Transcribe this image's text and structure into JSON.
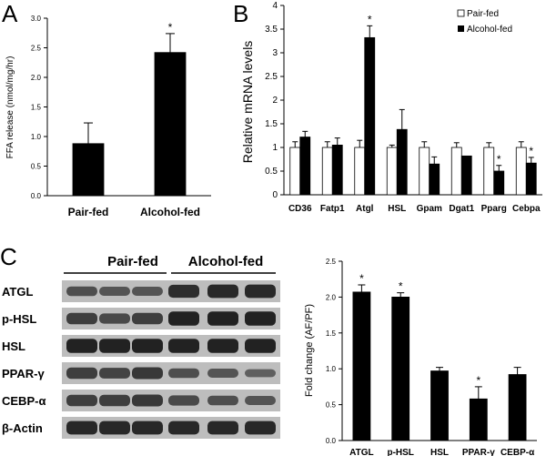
{
  "panels": {
    "A": "A",
    "B": "B",
    "C": "C"
  },
  "colors": {
    "bar_dark": "#000000",
    "bar_light": "#ffffff",
    "blot_band": "#1c1c1c",
    "blot_bg": "#bdbdbd"
  },
  "blot": {
    "group_labels": [
      "Pair-fed",
      "Alcohol-fed"
    ],
    "rows": [
      {
        "label": "ATGL",
        "strength": [
          0.55,
          0.5,
          0.5,
          0.85,
          0.9,
          0.9
        ]
      },
      {
        "label": "p-HSL",
        "strength": [
          0.7,
          0.6,
          0.7,
          0.95,
          0.95,
          0.95
        ]
      },
      {
        "label": "HSL",
        "strength": [
          0.95,
          0.95,
          0.95,
          0.95,
          0.95,
          0.95
        ]
      },
      {
        "label": "PPAR-γ",
        "strength": [
          0.7,
          0.65,
          0.75,
          0.55,
          0.5,
          0.4
        ]
      },
      {
        "label": "CEBP-α",
        "strength": [
          0.7,
          0.7,
          0.75,
          0.6,
          0.55,
          0.5
        ]
      },
      {
        "label": "β-Actin",
        "strength": [
          0.9,
          0.9,
          0.9,
          0.9,
          0.9,
          0.9
        ]
      }
    ]
  },
  "chart_data": [
    {
      "type": "bar",
      "panel": "A",
      "categories": [
        "Pair-fed",
        "Alcohol-fed"
      ],
      "values": [
        0.88,
        2.42
      ],
      "errors": [
        0.35,
        0.32
      ],
      "significance": [
        "",
        "*"
      ],
      "ylabel": "FFA release (nmol/mg/hr)",
      "ylim": [
        0,
        3.0
      ],
      "yticks": [
        "0.0",
        "0.5",
        "1.0",
        "1.5",
        "2.0",
        "2.5",
        "3.0"
      ],
      "grid": false
    },
    {
      "type": "bar",
      "panel": "B",
      "categories": [
        "CD36",
        "Fatp1",
        "Atgl",
        "HSL",
        "Gpam",
        "Dgat1",
        "Pparg",
        "Cebpa"
      ],
      "series": [
        {
          "name": "Pair-fed",
          "values": [
            1.0,
            1.0,
            1.0,
            1.0,
            1.0,
            1.0,
            1.0,
            1.0
          ],
          "errors": [
            0.12,
            0.12,
            0.15,
            0.05,
            0.12,
            0.1,
            0.1,
            0.12
          ],
          "significance": [
            "",
            "",
            "",
            "",
            "",
            "",
            "",
            ""
          ]
        },
        {
          "name": "Alcohol-fed",
          "values": [
            1.22,
            1.05,
            3.32,
            1.38,
            0.65,
            0.82,
            0.5,
            0.67
          ],
          "errors": [
            0.12,
            0.15,
            0.25,
            0.42,
            0.15,
            0.0,
            0.12,
            0.12
          ],
          "significance": [
            "",
            "",
            "*",
            "",
            "",
            "",
            "*",
            "*"
          ]
        }
      ],
      "ylabel": "Relative mRNA levels",
      "ylim": [
        0,
        4.0
      ],
      "yticks": [
        "0",
        "0.5",
        "1",
        "1.5",
        "2",
        "2.5",
        "3",
        "3.5",
        "4"
      ],
      "legend_position": "top-right",
      "grid": false
    },
    {
      "type": "bar",
      "panel": "C",
      "categories": [
        "ATGL",
        "p-HSL",
        "HSL",
        "PPAR-γ",
        "CEBP-α"
      ],
      "values": [
        2.07,
        2.0,
        0.97,
        0.58,
        0.92
      ],
      "errors": [
        0.1,
        0.06,
        0.05,
        0.17,
        0.1
      ],
      "significance": [
        "*",
        "*",
        "",
        "*",
        ""
      ],
      "ylabel": "Fold change (AF/PF)",
      "ylim": [
        0,
        2.5
      ],
      "yticks": [
        "0.0",
        "0.5",
        "1.0",
        "1.5",
        "2.0",
        "2.5"
      ],
      "grid": false
    }
  ]
}
